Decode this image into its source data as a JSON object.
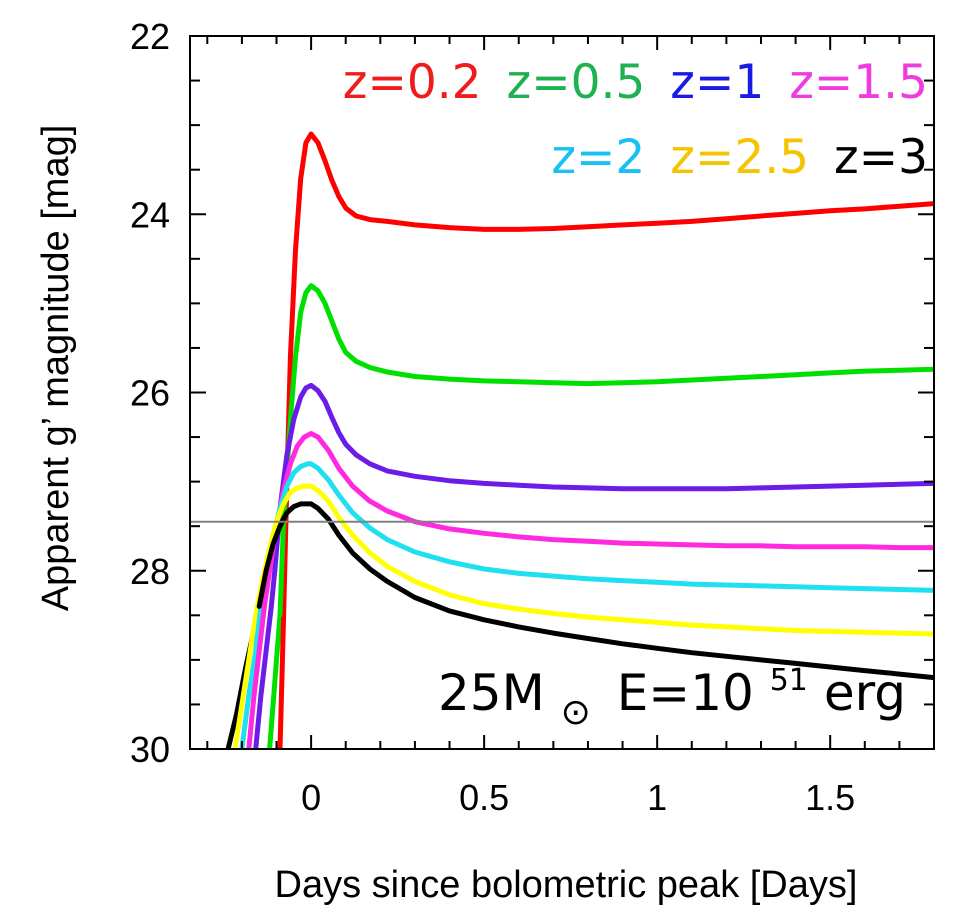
{
  "chart_data": {
    "type": "line",
    "xlabel": "Days since bolometric peak [Days]",
    "ylabel": "Apparent g’ magnitude [mag]",
    "xlim": [
      -0.35,
      1.8
    ],
    "ylim": [
      30,
      22
    ],
    "y_inverted": true,
    "grid": false,
    "x_ticks": [
      0,
      0.5,
      1,
      1.5
    ],
    "x_tick_labels": [
      "0",
      "0.5",
      "1",
      "1.5"
    ],
    "x_minor_step": 0.1,
    "y_ticks": [
      22,
      24,
      26,
      28,
      30
    ],
    "y_tick_labels": [
      "22",
      "24",
      "26",
      "28",
      "30"
    ],
    "y_minor_step": 0.5,
    "legend_placement": "top-right",
    "legend_rows": [
      [
        {
          "label": "z=0.2",
          "color": "#ee1c1c"
        },
        {
          "label": "z=0.5",
          "color": "#1fb050"
        },
        {
          "label": "z=1",
          "color": "#1a1ae6"
        },
        {
          "label": "z=1.5",
          "color": "#f03cde"
        }
      ],
      [
        {
          "label": "z=2",
          "color": "#17c2f0"
        },
        {
          "label": "z=2.5",
          "color": "#f5c400"
        },
        {
          "label": "z=3",
          "color": "#000000"
        }
      ]
    ],
    "annotation": {
      "prefix": "25M",
      "sun_symbol": "⊙",
      "energy_base": "E=10",
      "energy_exp": "51",
      "energy_unit": "erg"
    },
    "reference_line": {
      "y": 27.45,
      "color": "#808080"
    },
    "series": [
      {
        "color": "#ff0000",
        "x": [
          -0.09,
          -0.08,
          -0.07,
          -0.06,
          -0.045,
          -0.03,
          -0.015,
          0.0,
          0.02,
          0.04,
          0.06,
          0.08,
          0.1,
          0.13,
          0.17,
          0.22,
          0.3,
          0.4,
          0.5,
          0.6,
          0.7,
          0.8,
          0.9,
          1.0,
          1.1,
          1.2,
          1.3,
          1.4,
          1.5,
          1.6,
          1.7,
          1.8
        ],
        "y": [
          30.0,
          28.6,
          27.0,
          25.6,
          24.4,
          23.6,
          23.2,
          23.1,
          23.2,
          23.4,
          23.62,
          23.8,
          23.93,
          24.02,
          24.06,
          24.08,
          24.12,
          24.15,
          24.17,
          24.17,
          24.16,
          24.14,
          24.12,
          24.1,
          24.08,
          24.05,
          24.02,
          23.99,
          23.96,
          23.94,
          23.91,
          23.88
        ]
      },
      {
        "color": "#00e000",
        "x": [
          -0.09,
          -0.08,
          -0.06,
          -0.045,
          -0.03,
          -0.015,
          0.0,
          0.02,
          0.04,
          0.06,
          0.08,
          0.1,
          0.13,
          0.17,
          0.22,
          0.3,
          0.4,
          0.5,
          0.6,
          0.7,
          0.8,
          0.9,
          1.0,
          1.1,
          1.2,
          1.3,
          1.4,
          1.5,
          1.6,
          1.7,
          1.8
        ],
        "y": [
          28.5,
          27.5,
          26.3,
          25.6,
          25.1,
          24.88,
          24.8,
          24.86,
          25.0,
          25.2,
          25.4,
          25.55,
          25.65,
          25.72,
          25.77,
          25.82,
          25.85,
          25.87,
          25.88,
          25.89,
          25.9,
          25.89,
          25.88,
          25.86,
          25.84,
          25.82,
          25.8,
          25.78,
          25.76,
          25.75,
          25.74
        ]
      },
      {
        "color": "#6a1ce8",
        "x": [
          -0.105,
          -0.09,
          -0.07,
          -0.05,
          -0.03,
          -0.015,
          0.0,
          0.02,
          0.04,
          0.06,
          0.08,
          0.1,
          0.13,
          0.17,
          0.22,
          0.3,
          0.4,
          0.5,
          0.6,
          0.7,
          0.8,
          0.9,
          1.0,
          1.1,
          1.2,
          1.3,
          1.4,
          1.5,
          1.6,
          1.7,
          1.8
        ],
        "y": [
          28.0,
          27.3,
          26.7,
          26.3,
          26.05,
          25.95,
          25.92,
          25.98,
          26.1,
          26.28,
          26.45,
          26.58,
          26.7,
          26.8,
          26.88,
          26.94,
          26.99,
          27.02,
          27.04,
          27.06,
          27.07,
          27.08,
          27.08,
          27.08,
          27.08,
          27.07,
          27.06,
          27.05,
          27.04,
          27.03,
          27.02
        ]
      },
      {
        "color": "#ff2ae0",
        "x": [
          -0.12,
          -0.1,
          -0.08,
          -0.06,
          -0.04,
          -0.02,
          0.0,
          0.02,
          0.05,
          0.08,
          0.12,
          0.17,
          0.22,
          0.3,
          0.4,
          0.5,
          0.6,
          0.7,
          0.8,
          0.9,
          1.0,
          1.1,
          1.2,
          1.3,
          1.4,
          1.5,
          1.6,
          1.7,
          1.8
        ],
        "y": [
          28.0,
          27.5,
          27.1,
          26.8,
          26.6,
          26.5,
          26.46,
          26.5,
          26.65,
          26.85,
          27.05,
          27.22,
          27.33,
          27.45,
          27.53,
          27.58,
          27.62,
          27.65,
          27.67,
          27.69,
          27.7,
          27.71,
          27.72,
          27.72,
          27.73,
          27.73,
          27.73,
          27.74,
          27.74
        ]
      },
      {
        "color": "#20e0f0",
        "x": [
          -0.13,
          -0.11,
          -0.09,
          -0.07,
          -0.05,
          -0.03,
          -0.01,
          0.0,
          0.02,
          0.05,
          0.08,
          0.12,
          0.17,
          0.22,
          0.3,
          0.4,
          0.5,
          0.6,
          0.7,
          0.8,
          0.9,
          1.0,
          1.1,
          1.2,
          1.3,
          1.4,
          1.5,
          1.6,
          1.7,
          1.8
        ],
        "y": [
          28.0,
          27.6,
          27.3,
          27.05,
          26.9,
          26.83,
          26.8,
          26.8,
          26.85,
          26.98,
          27.15,
          27.35,
          27.52,
          27.65,
          27.79,
          27.9,
          27.98,
          28.03,
          28.06,
          28.09,
          28.11,
          28.13,
          28.15,
          28.16,
          28.17,
          28.18,
          28.19,
          28.2,
          28.21,
          28.22
        ]
      },
      {
        "color": "#ffff00",
        "x": [
          -0.14,
          -0.12,
          -0.1,
          -0.08,
          -0.06,
          -0.04,
          -0.02,
          0.0,
          0.02,
          0.05,
          0.08,
          0.12,
          0.17,
          0.22,
          0.3,
          0.4,
          0.5,
          0.6,
          0.7,
          0.8,
          0.9,
          1.0,
          1.1,
          1.2,
          1.3,
          1.4,
          1.5,
          1.6,
          1.7,
          1.8
        ],
        "y": [
          28.1,
          27.75,
          27.45,
          27.25,
          27.12,
          27.07,
          27.05,
          27.05,
          27.1,
          27.22,
          27.4,
          27.6,
          27.8,
          27.95,
          28.12,
          28.27,
          28.37,
          28.43,
          28.48,
          28.52,
          28.55,
          28.58,
          28.61,
          28.63,
          28.65,
          28.67,
          28.68,
          28.69,
          28.7,
          28.71
        ]
      },
      {
        "color": "#000000",
        "x": [
          -0.15,
          -0.13,
          -0.11,
          -0.09,
          -0.07,
          -0.05,
          -0.03,
          -0.01,
          0.0,
          0.02,
          0.05,
          0.08,
          0.12,
          0.17,
          0.22,
          0.3,
          0.4,
          0.5,
          0.6,
          0.7,
          0.8,
          0.9,
          1.0,
          1.1,
          1.2,
          1.3,
          1.4,
          1.5,
          1.6,
          1.7,
          1.8
        ],
        "y": [
          28.4,
          28.0,
          27.7,
          27.5,
          27.35,
          27.28,
          27.25,
          27.25,
          27.25,
          27.3,
          27.42,
          27.6,
          27.8,
          27.98,
          28.12,
          28.3,
          28.45,
          28.55,
          28.63,
          28.7,
          28.76,
          28.82,
          28.87,
          28.92,
          28.96,
          29.0,
          29.04,
          29.08,
          29.12,
          29.16,
          29.2
        ]
      }
    ],
    "pre_rise_segments": [
      {
        "color": "#000000",
        "x": [
          -0.24,
          -0.215,
          -0.19,
          -0.17,
          -0.15
        ],
        "y": [
          30.0,
          29.6,
          29.1,
          28.75,
          28.4
        ]
      },
      {
        "color": "#ffff00",
        "x": [
          -0.22,
          -0.2,
          -0.18,
          -0.16,
          -0.14
        ],
        "y": [
          30.0,
          29.5,
          29.0,
          28.5,
          28.1
        ]
      },
      {
        "color": "#20e0f0",
        "x": [
          -0.2,
          -0.18,
          -0.16,
          -0.145,
          -0.13
        ],
        "y": [
          30.0,
          29.4,
          28.9,
          28.4,
          28.0
        ]
      },
      {
        "color": "#ff2ae0",
        "x": [
          -0.18,
          -0.165,
          -0.15,
          -0.135,
          -0.12
        ],
        "y": [
          30.0,
          29.4,
          28.9,
          28.4,
          28.0
        ]
      },
      {
        "color": "#6a1ce8",
        "x": [
          -0.16,
          -0.145,
          -0.13,
          -0.115,
          -0.105
        ],
        "y": [
          30.0,
          29.4,
          28.9,
          28.4,
          28.0
        ]
      },
      {
        "color": "#00e000",
        "x": [
          -0.12,
          -0.11,
          -0.1,
          -0.09
        ],
        "y": [
          30.0,
          29.5,
          29.0,
          28.5
        ]
      }
    ]
  }
}
